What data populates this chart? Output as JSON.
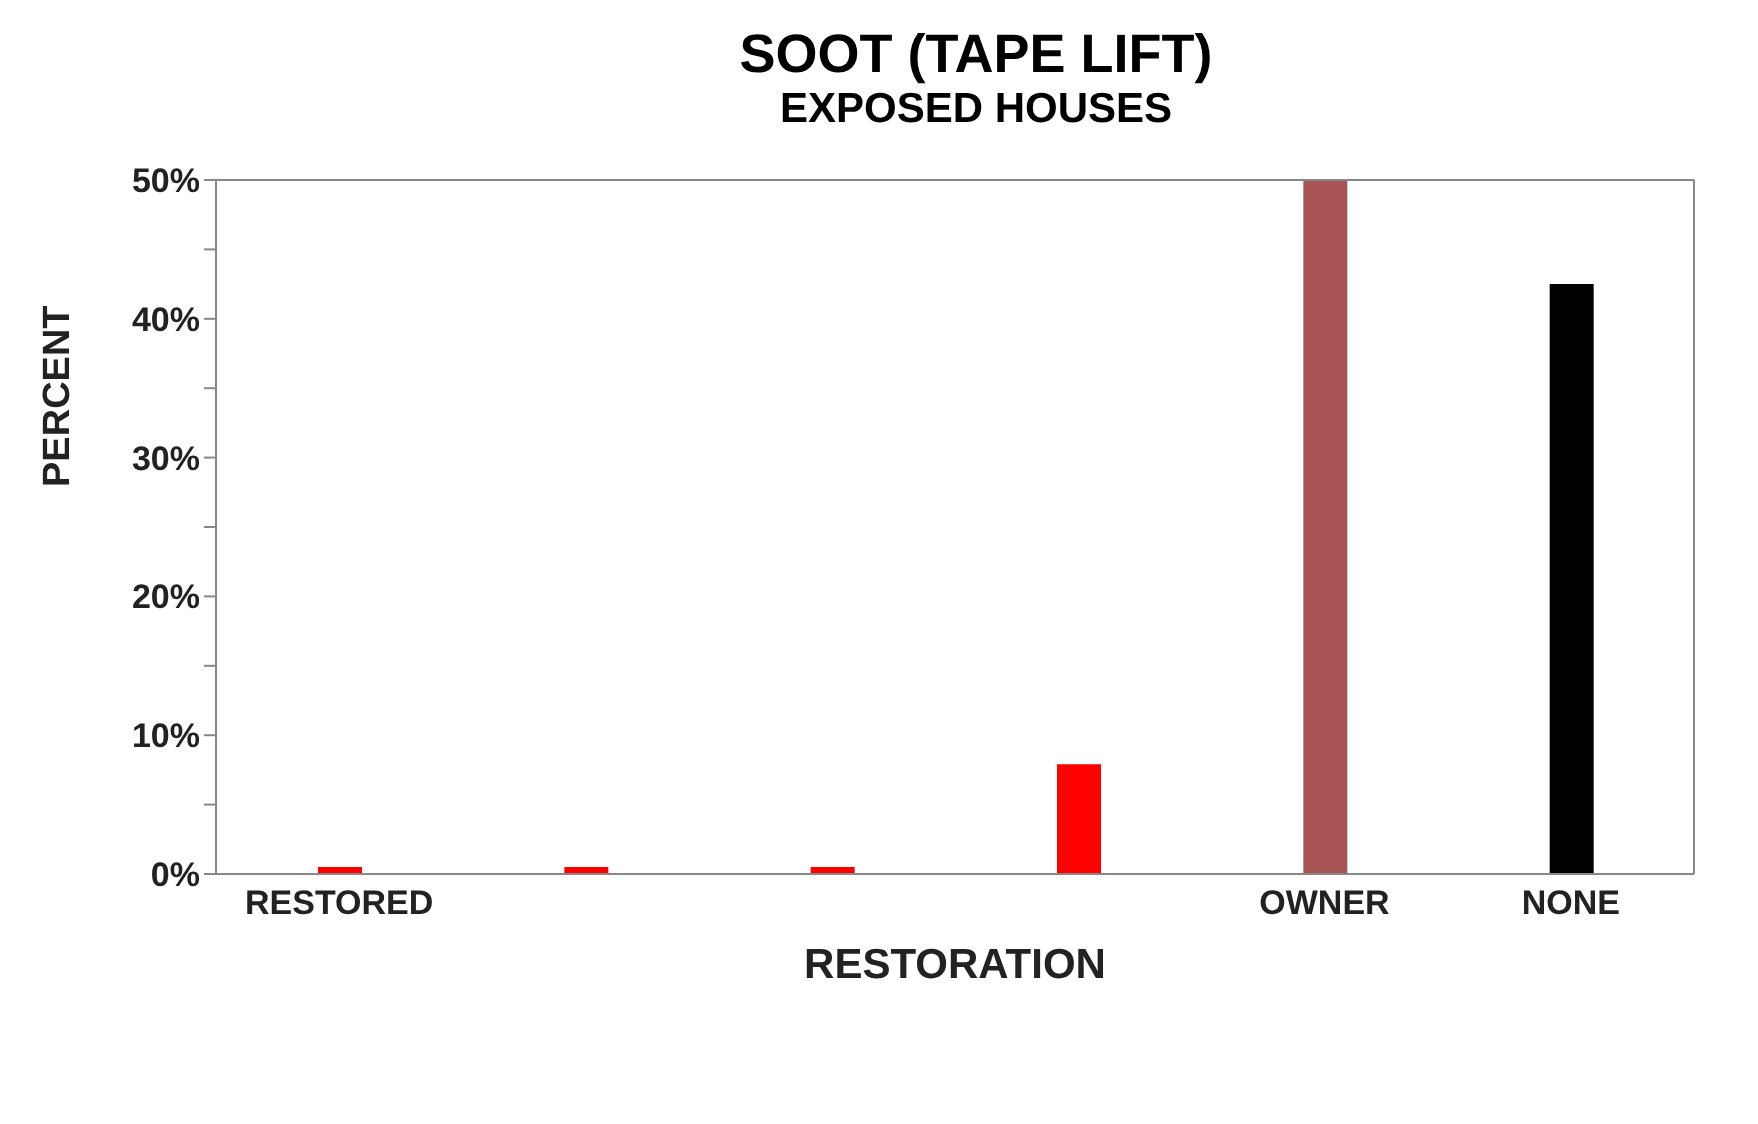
{
  "chart_data": {
    "type": "bar",
    "title": "SOOT (TAPE LIFT)",
    "subtitle": "EXPOSED HOUSES",
    "xlabel": "RESTORATION",
    "ylabel": "PERCENT",
    "categories": [
      "RESTORED",
      null,
      null,
      null,
      "OWNER",
      "NONE"
    ],
    "values": [
      0.5,
      0.5,
      0.5,
      7.9,
      50,
      42.5
    ],
    "colors": [
      "#ff0000",
      "#ff0000",
      "#ff0000",
      "#ff0000",
      "#a85454",
      "#000000"
    ],
    "ylim": [
      0,
      50
    ],
    "yticks": [
      {
        "value": 0,
        "label": "0%"
      },
      {
        "value": 5,
        "label": null
      },
      {
        "value": 10,
        "label": "10%"
      },
      {
        "value": 15,
        "label": null
      },
      {
        "value": 20,
        "label": "20%"
      },
      {
        "value": 25,
        "label": null
      },
      {
        "value": 30,
        "label": "30%"
      },
      {
        "value": 35,
        "label": null
      },
      {
        "value": 40,
        "label": "40%"
      },
      {
        "value": 45,
        "label": null
      },
      {
        "value": 50,
        "label": "50%"
      }
    ],
    "grid": false,
    "legend": false
  }
}
